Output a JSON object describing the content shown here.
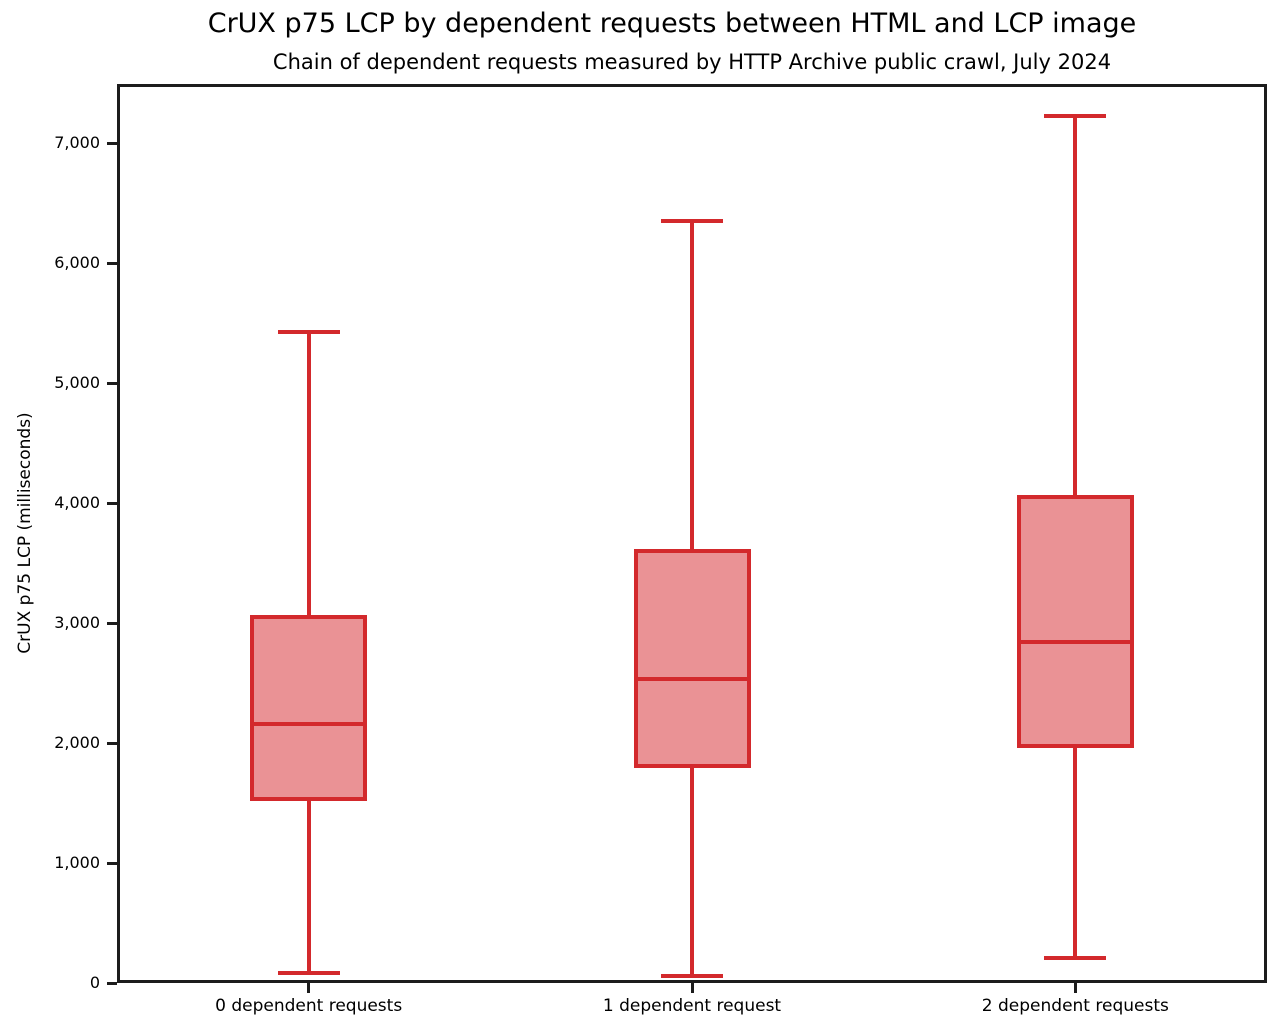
{
  "chart_data": {
    "type": "boxplot",
    "title": "CrUX p75 LCP by dependent requests between HTML and LCP image",
    "subtitle": "Chain of dependent requests measured by HTTP Archive public crawl, July 2024",
    "ylabel": "CrUX p75 LCP (milliseconds)",
    "xlabel": "",
    "categories": [
      "0 dependent requests",
      "1 dependent request",
      "2 dependent requests"
    ],
    "series": [
      {
        "category": "0 dependent requests",
        "whisker_low": 80,
        "q1": 1520,
        "median": 2160,
        "q3": 3070,
        "whisker_high": 5430
      },
      {
        "category": "1 dependent request",
        "whisker_low": 55,
        "q1": 1790,
        "median": 2530,
        "q3": 3620,
        "whisker_high": 6350
      },
      {
        "category": "2 dependent requests",
        "whisker_low": 210,
        "q1": 1960,
        "median": 2840,
        "q3": 4070,
        "whisker_high": 7230
      }
    ],
    "yticks": [
      0,
      1000,
      2000,
      3000,
      4000,
      5000,
      6000,
      7000
    ],
    "ytick_labels": [
      "0",
      "1,000",
      "2,000",
      "3,000",
      "4,000",
      "5,000",
      "6,000",
      "7,000"
    ],
    "ylim": [
      0,
      7494
    ],
    "grid": false,
    "legend": false,
    "colors": {
      "box_stroke": "#d3292c",
      "box_fill": "#ea9295",
      "axis": "#1c1c1c",
      "text": "#000000"
    }
  }
}
